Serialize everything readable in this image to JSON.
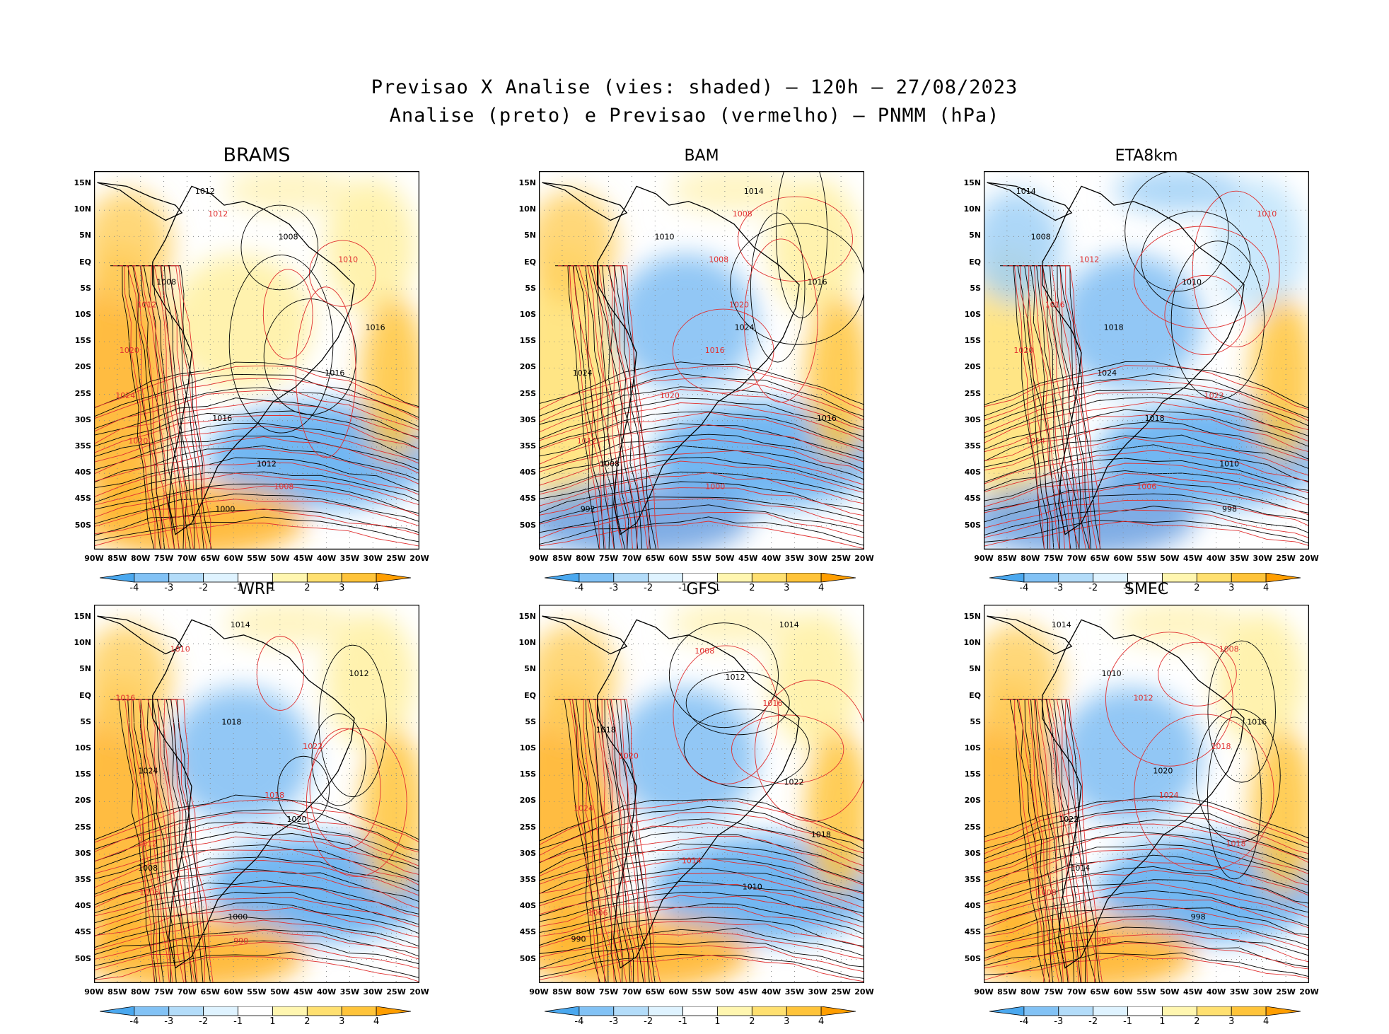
{
  "title_line1": "Previsao X Analise (vies: shaded) — 120h — 27/08/2023",
  "title_line2": "Analise (preto) e Previsao (vermelho) — PNMM (hPa)",
  "lat_labels": [
    "15N",
    "10N",
    "5N",
    "EQ",
    "5S",
    "10S",
    "15S",
    "20S",
    "25S",
    "30S",
    "35S",
    "40S",
    "45S",
    "50S"
  ],
  "lon_labels": [
    "90W",
    "85W",
    "80W",
    "75W",
    "70W",
    "65W",
    "60W",
    "55W",
    "50W",
    "45W",
    "40W",
    "35W",
    "30W",
    "25W",
    "20W"
  ],
  "colorbar_labels": [
    "-4",
    "-3",
    "-2",
    "-1",
    "1",
    "2",
    "3",
    "4"
  ],
  "colorbar_colors": [
    "#4aa8ef",
    "#82c2f5",
    "#b3dcf9",
    "#dff3ff",
    "#ffffff",
    "#fff6b0",
    "#ffe070",
    "#ffc43a",
    "#ff9e00"
  ],
  "panels": [
    {
      "name": "BRAMS",
      "labels": [
        "1012",
        "1012",
        "1008",
        "1010",
        "1008",
        "1012",
        "1016",
        "1020",
        "1016",
        "1024",
        "1016",
        "1020",
        "1012",
        "1008",
        "1000"
      ]
    },
    {
      "name": "BAM",
      "labels": [
        "1014",
        "1008",
        "1010",
        "1008",
        "1016",
        "1020",
        "1024",
        "1016",
        "1024",
        "1020",
        "1016",
        "1012",
        "1008",
        "1000",
        "992"
      ]
    },
    {
      "name": "ETA8km",
      "labels": [
        "1014",
        "1010",
        "1008",
        "1012",
        "1010",
        "1016",
        "1018",
        "1020",
        "1024",
        "1022",
        "1018",
        "1014",
        "1010",
        "1006",
        "998"
      ]
    },
    {
      "name": "WRF",
      "labels": [
        "1014",
        "1010",
        "1012",
        "1016",
        "1018",
        "1022",
        "1024",
        "1018",
        "1020",
        "1012",
        "1008",
        "1006",
        "1000",
        "990"
      ]
    },
    {
      "name": "GFS",
      "labels": [
        "1014",
        "1008",
        "1012",
        "1016",
        "1018",
        "1020",
        "1022",
        "1024",
        "1018",
        "1014",
        "1010",
        "1006",
        "990"
      ]
    },
    {
      "name": "SMEC",
      "labels": [
        "1014",
        "1008",
        "1010",
        "1012",
        "1016",
        "1018",
        "1020",
        "1024",
        "1022",
        "1018",
        "1014",
        "1008",
        "998",
        "990"
      ]
    }
  ]
}
